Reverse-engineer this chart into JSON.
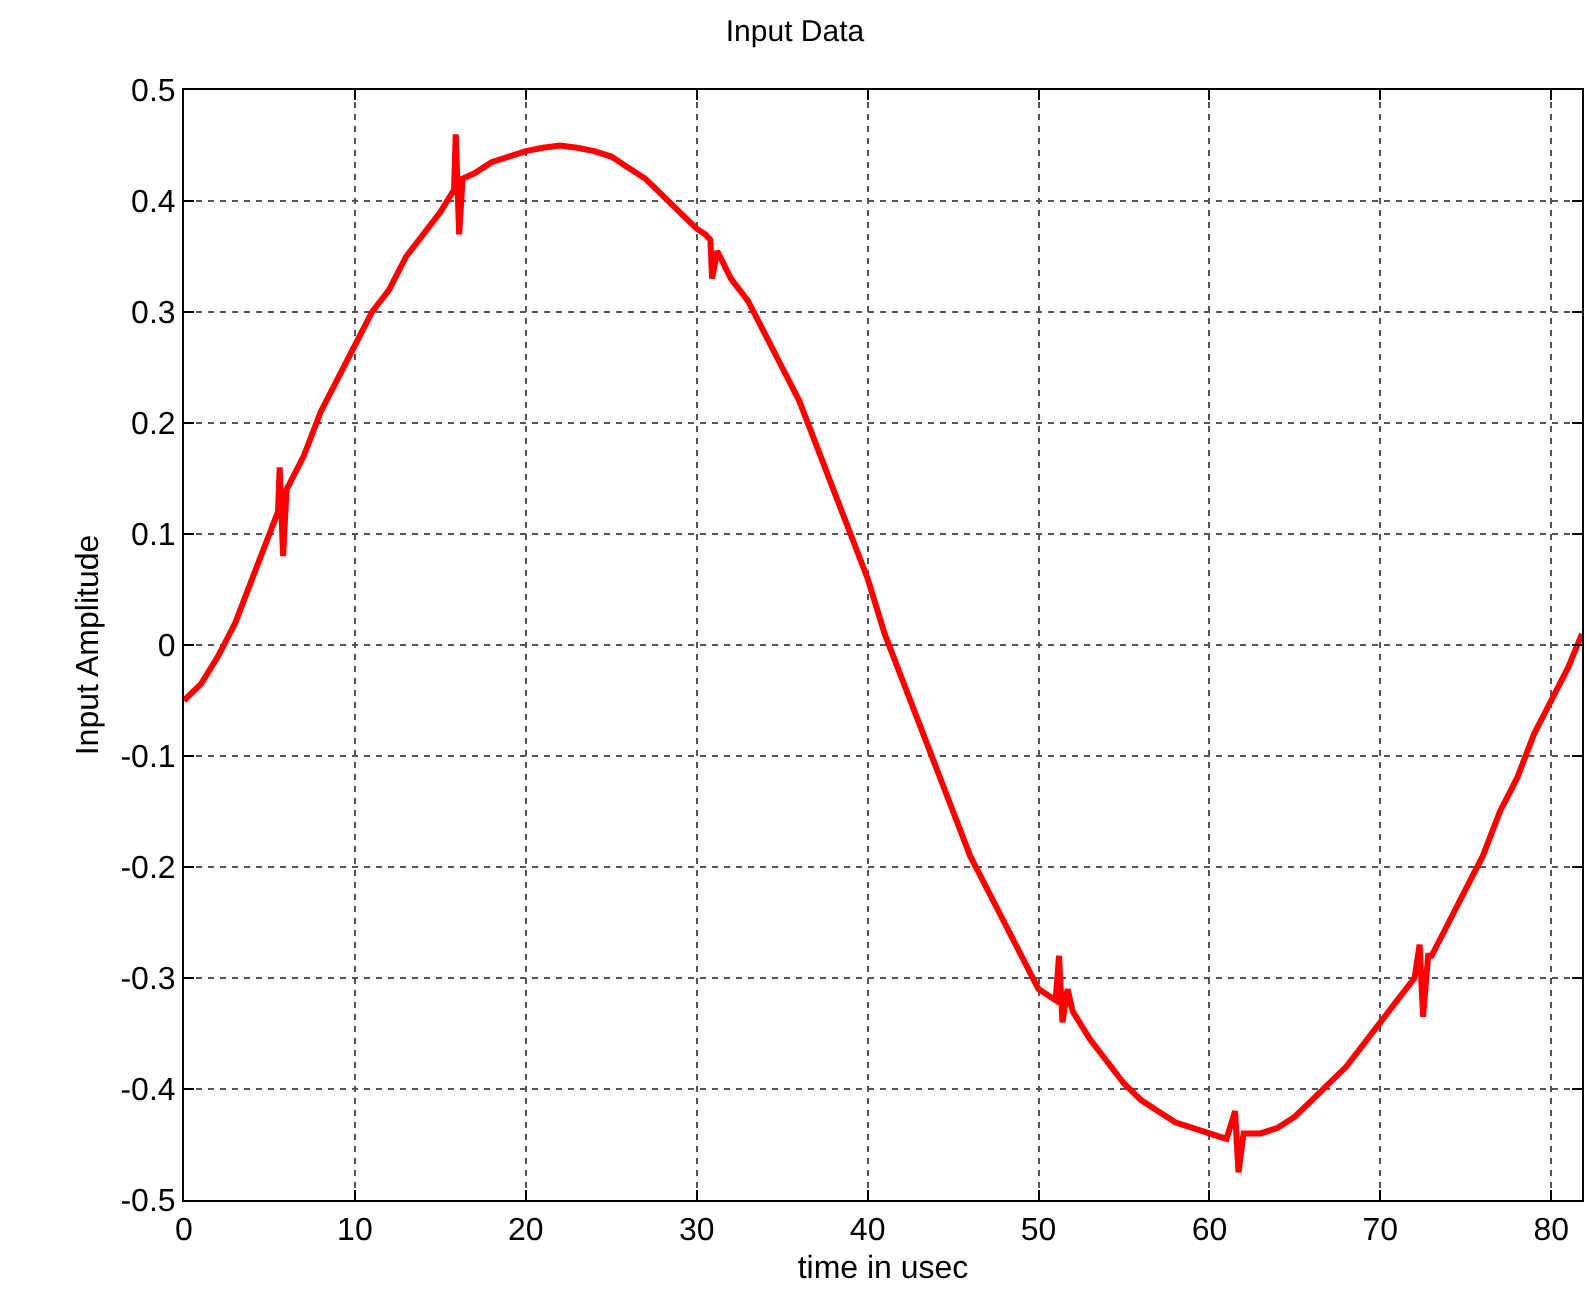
{
  "chart_data": {
    "type": "line",
    "title": "Input Data",
    "xlabel": "time in usec",
    "ylabel": "Input Amplitude",
    "xlim": [
      0,
      81.8
    ],
    "ylim": [
      -0.5,
      0.5
    ],
    "xticks": [
      0,
      10,
      20,
      30,
      40,
      50,
      60,
      70,
      80
    ],
    "yticks": [
      -0.5,
      -0.4,
      -0.3,
      -0.2,
      -0.1,
      0,
      0.1,
      0.2,
      0.3,
      0.4,
      0.5
    ],
    "grid": true,
    "marker": "none",
    "line_style": "solid",
    "x": [
      0,
      1,
      2,
      3,
      4,
      5,
      5.5,
      5.6,
      5.8,
      6,
      7,
      8,
      9,
      10,
      11,
      12,
      13,
      14,
      15,
      15.8,
      15.9,
      16.1,
      16.3,
      17,
      18,
      19,
      20,
      21,
      22,
      23,
      24,
      25,
      26,
      27,
      28,
      29,
      30,
      30.5,
      30.8,
      30.9,
      31.2,
      32,
      33,
      34,
      35,
      36,
      37,
      38,
      39,
      40,
      41,
      42,
      43,
      44,
      45,
      46,
      47,
      48,
      49,
      50,
      51,
      51.2,
      51.4,
      51.7,
      52,
      53,
      54,
      55,
      56,
      57,
      58,
      59,
      60,
      61,
      61.5,
      61.7,
      62,
      63,
      64,
      65,
      66,
      67,
      68,
      69,
      70,
      71,
      72,
      72.3,
      72.5,
      72.8,
      73,
      74,
      75,
      76,
      77,
      78,
      79,
      80,
      81,
      81.8
    ],
    "series": [
      {
        "color": "#ff0000",
        "values": [
          -0.05,
          -0.035,
          -0.01,
          0.02,
          0.06,
          0.1,
          0.12,
          0.16,
          0.08,
          0.14,
          0.17,
          0.21,
          0.24,
          0.27,
          0.3,
          0.32,
          0.35,
          0.37,
          0.39,
          0.41,
          0.46,
          0.37,
          0.42,
          0.425,
          0.435,
          0.44,
          0.445,
          0.448,
          0.45,
          0.448,
          0.445,
          0.44,
          0.43,
          0.42,
          0.405,
          0.39,
          0.375,
          0.37,
          0.365,
          0.33,
          0.355,
          0.33,
          0.31,
          0.28,
          0.25,
          0.22,
          0.18,
          0.14,
          0.1,
          0.06,
          0.01,
          -0.03,
          -0.07,
          -0.11,
          -0.15,
          -0.19,
          -0.22,
          -0.25,
          -0.28,
          -0.31,
          -0.32,
          -0.28,
          -0.34,
          -0.31,
          -0.33,
          -0.355,
          -0.375,
          -0.395,
          -0.41,
          -0.42,
          -0.43,
          -0.435,
          -0.44,
          -0.445,
          -0.42,
          -0.475,
          -0.44,
          -0.44,
          -0.435,
          -0.425,
          -0.41,
          -0.395,
          -0.38,
          -0.36,
          -0.34,
          -0.32,
          -0.3,
          -0.27,
          -0.335,
          -0.28,
          -0.28,
          -0.25,
          -0.22,
          -0.19,
          -0.15,
          -0.12,
          -0.08,
          -0.05,
          -0.02,
          0.01
        ]
      }
    ]
  }
}
